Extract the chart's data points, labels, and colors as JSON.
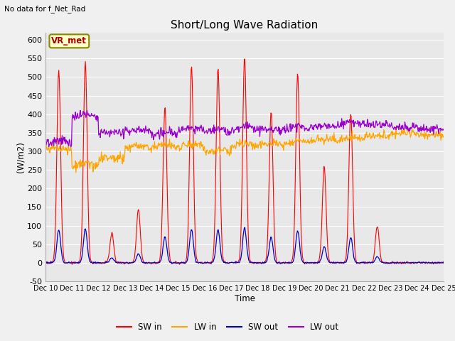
{
  "title": "Short/Long Wave Radiation",
  "top_left_text": "No data for f_Net_Rad",
  "ylabel": "(W/m2)",
  "xlabel": "Time",
  "ylim": [
    -50,
    620
  ],
  "yticks": [
    -50,
    0,
    50,
    100,
    150,
    200,
    250,
    300,
    350,
    400,
    450,
    500,
    550,
    600
  ],
  "legend_box_label": "VR_met",
  "legend_entries": [
    "SW in",
    "LW in",
    "SW out",
    "LW out"
  ],
  "line_colors": [
    "#ff0000",
    "#ffa500",
    "#0000cc",
    "#9900cc"
  ],
  "bg_color": "#f0f0f0",
  "plot_bg_color": "#e8e8e8",
  "n_days": 15,
  "start_day": 10,
  "sw_in_peaks": [
    520,
    540,
    80,
    145,
    420,
    530,
    525,
    555,
    405,
    510,
    260,
    405,
    100,
    0,
    0
  ],
  "lw_in_base": [
    300,
    255,
    280,
    310,
    310,
    310,
    295,
    310,
    315,
    320,
    330,
    330,
    340,
    350,
    345
  ],
  "lw_out_base": [
    320,
    390,
    350,
    355,
    345,
    355,
    350,
    360,
    355,
    360,
    365,
    370,
    370,
    365,
    360
  ]
}
